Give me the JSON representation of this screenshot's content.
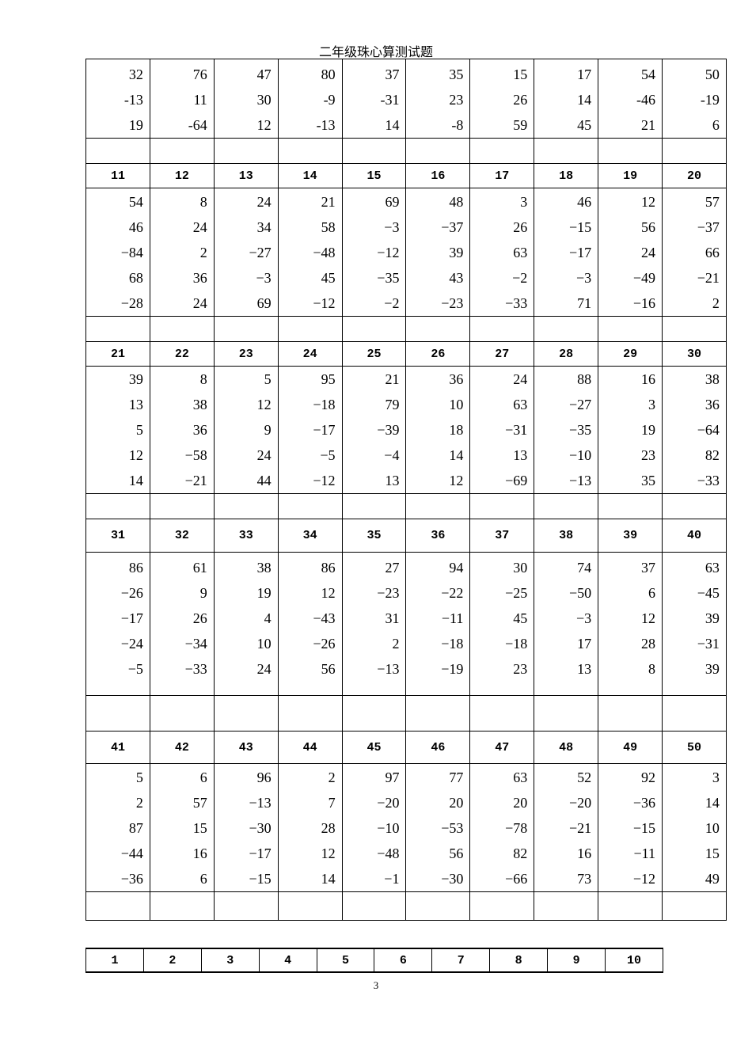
{
  "title": "二年级珠心算测试题",
  "blocks": [
    {
      "header": null,
      "columns": [
        [
          "32",
          "-13",
          "19"
        ],
        [
          "76",
          "11",
          "-64"
        ],
        [
          "47",
          "30",
          "12"
        ],
        [
          "80",
          "-9",
          "-13"
        ],
        [
          "37",
          "-31",
          "14"
        ],
        [
          "35",
          "23",
          "-8"
        ],
        [
          "15",
          "26",
          "59"
        ],
        [
          "17",
          "14",
          "45"
        ],
        [
          "54",
          "-46",
          "21"
        ],
        [
          "50",
          "-19",
          "6"
        ]
      ]
    },
    {
      "header": [
        "11",
        "12",
        "13",
        "14",
        "15",
        "16",
        "17",
        "18",
        "19",
        "20"
      ],
      "columns": [
        [
          "54",
          "46",
          "−84",
          "68",
          "−28"
        ],
        [
          "8",
          "24",
          "2",
          "36",
          "24"
        ],
        [
          "24",
          "34",
          "−27",
          "−3",
          "69"
        ],
        [
          "21",
          "58",
          "−48",
          "45",
          "−12"
        ],
        [
          "69",
          "−3",
          "−12",
          "−35",
          "−2"
        ],
        [
          "48",
          "−37",
          "39",
          "43",
          "−23"
        ],
        [
          "3",
          "26",
          "63",
          "−2",
          "−33"
        ],
        [
          "46",
          "−15",
          "−17",
          "−3",
          "71"
        ],
        [
          "12",
          "56",
          "24",
          "−49",
          "−16"
        ],
        [
          "57",
          "−37",
          "66",
          "−21",
          "2"
        ]
      ]
    },
    {
      "header": [
        "21",
        "22",
        "23",
        "24",
        "25",
        "26",
        "27",
        "28",
        "29",
        "30"
      ],
      "columns": [
        [
          "39",
          "13",
          "5",
          "12",
          "14"
        ],
        [
          "8",
          "38",
          "36",
          "−58",
          "−21"
        ],
        [
          "5",
          "12",
          "9",
          "24",
          "44"
        ],
        [
          "95",
          "−18",
          "−17",
          "−5",
          "−12"
        ],
        [
          "21",
          "79",
          "−39",
          "−4",
          "13"
        ],
        [
          "36",
          "10",
          "18",
          "14",
          "12"
        ],
        [
          "24",
          "63",
          "−31",
          "13",
          "−69"
        ],
        [
          "88",
          "−27",
          "−35",
          "−10",
          "−13"
        ],
        [
          "16",
          "3",
          "19",
          "23",
          "35"
        ],
        [
          "38",
          "36",
          "−64",
          "82",
          "−33"
        ]
      ]
    },
    {
      "header": [
        "31",
        "32",
        "33",
        "34",
        "35",
        "36",
        "37",
        "38",
        "39",
        "40"
      ],
      "columns": [
        [
          "86",
          "−26",
          "−17",
          "−24",
          "−5"
        ],
        [
          "61",
          "9",
          "26",
          "−34",
          "−33"
        ],
        [
          "38",
          "19",
          "4",
          "10",
          "24"
        ],
        [
          "86",
          "12",
          "−43",
          "−26",
          "56"
        ],
        [
          "27",
          "−23",
          "31",
          "2",
          "−13"
        ],
        [
          "94",
          "−22",
          "−11",
          "−18",
          "−19"
        ],
        [
          "30",
          "−25",
          "45",
          "−18",
          "23"
        ],
        [
          "74",
          "−50",
          "−3",
          "17",
          "13"
        ],
        [
          "37",
          "6",
          "12",
          "28",
          "8"
        ],
        [
          "63",
          "−45",
          "39",
          "−31",
          "39"
        ]
      ]
    },
    {
      "header": [
        "41",
        "42",
        "43",
        "44",
        "45",
        "46",
        "47",
        "48",
        "49",
        "50"
      ],
      "columns": [
        [
          "5",
          "2",
          "87",
          "−44",
          "−36"
        ],
        [
          "6",
          "57",
          "15",
          "16",
          "6"
        ],
        [
          "96",
          "−13",
          "−30",
          "−17",
          "−15"
        ],
        [
          "2",
          "7",
          "28",
          "12",
          "14"
        ],
        [
          "97",
          "−20",
          "−10",
          "−48",
          "−1"
        ],
        [
          "77",
          "20",
          "−53",
          "56",
          "−30"
        ],
        [
          "63",
          "20",
          "−78",
          "82",
          "−66"
        ],
        [
          "52",
          "−20",
          "−21",
          "16",
          "73"
        ],
        [
          "92",
          "−36",
          "−15",
          "−11",
          "−12"
        ],
        [
          "3",
          "14",
          "10",
          "15",
          "49"
        ]
      ]
    }
  ],
  "answer_key_header": [
    "1",
    "2",
    "3",
    "4",
    "5",
    "6",
    "7",
    "8",
    "9",
    "10"
  ],
  "page_number": "3"
}
